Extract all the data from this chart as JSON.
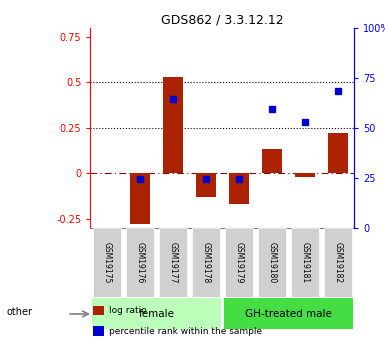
{
  "title": "GDS862 / 3.3.12.12",
  "samples": [
    "GSM19175",
    "GSM19176",
    "GSM19177",
    "GSM19178",
    "GSM19179",
    "GSM19180",
    "GSM19181",
    "GSM19182"
  ],
  "log_ratio": [
    0.0,
    -0.28,
    0.53,
    -0.13,
    -0.17,
    0.13,
    -0.02,
    0.22
  ],
  "percentile_rank_pct": [
    null,
    22.0,
    66.0,
    22.0,
    22.0,
    60.0,
    53.0,
    70.0
  ],
  "groups": [
    {
      "label": "female",
      "start": 0,
      "end": 3,
      "color": "#bbffbb"
    },
    {
      "label": "GH-treated male",
      "start": 4,
      "end": 7,
      "color": "#44dd44"
    }
  ],
  "bar_color": "#aa2200",
  "dot_color": "#0000cc",
  "ylim_left": [
    -0.3,
    0.8
  ],
  "ylim_right": [
    0,
    100
  ],
  "yticks_left": [
    -0.25,
    0.0,
    0.25,
    0.5,
    0.75
  ],
  "ytick_labels_left": [
    "-0.25",
    "0",
    "0.25",
    "0.5",
    "0.75"
  ],
  "yticks_right": [
    0,
    25,
    50,
    75,
    100
  ],
  "ytick_labels_right": [
    "0",
    "25",
    "50",
    "75",
    "100%"
  ],
  "hline_dotted": [
    0.25,
    0.5
  ],
  "hline_dashed": 0.0,
  "legend_items": [
    {
      "label": "log ratio",
      "color": "#aa2200"
    },
    {
      "label": "percentile rank within the sample",
      "color": "#0000cc"
    }
  ],
  "other_label": "other",
  "background_color": "#ffffff",
  "bar_width": 0.6
}
